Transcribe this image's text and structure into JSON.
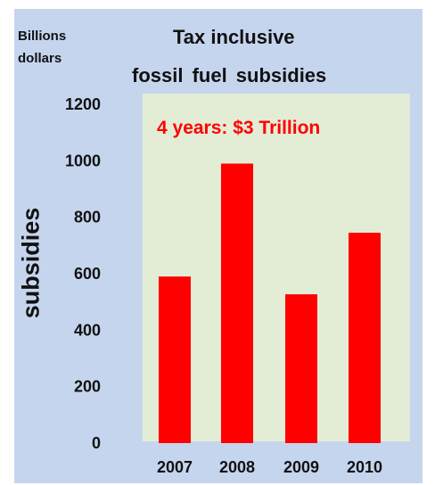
{
  "chart_data": {
    "type": "bar",
    "title": "Tax inclusive fossil fuel subsidies",
    "title_lines": [
      "Tax inclusive",
      "fossil  fuel subsidies"
    ],
    "units_label_lines": [
      "Billions",
      "dollars"
    ],
    "ylabel": "subsidies",
    "xlabel": "",
    "categories": [
      "2007",
      "2008",
      "2009",
      "2010"
    ],
    "values": [
      590,
      990,
      527,
      745
    ],
    "ylim": [
      0,
      1200
    ],
    "yticks": [
      0,
      200,
      400,
      600,
      800,
      1000,
      1200
    ],
    "annotation": "4 years: $3 Trillion",
    "grid": false,
    "legend": "none",
    "colors": {
      "bar": "#ff0000",
      "plot_background": "#e3edd6",
      "frame_background": "#c6d5ee",
      "annotation": "#ff0000"
    }
  }
}
